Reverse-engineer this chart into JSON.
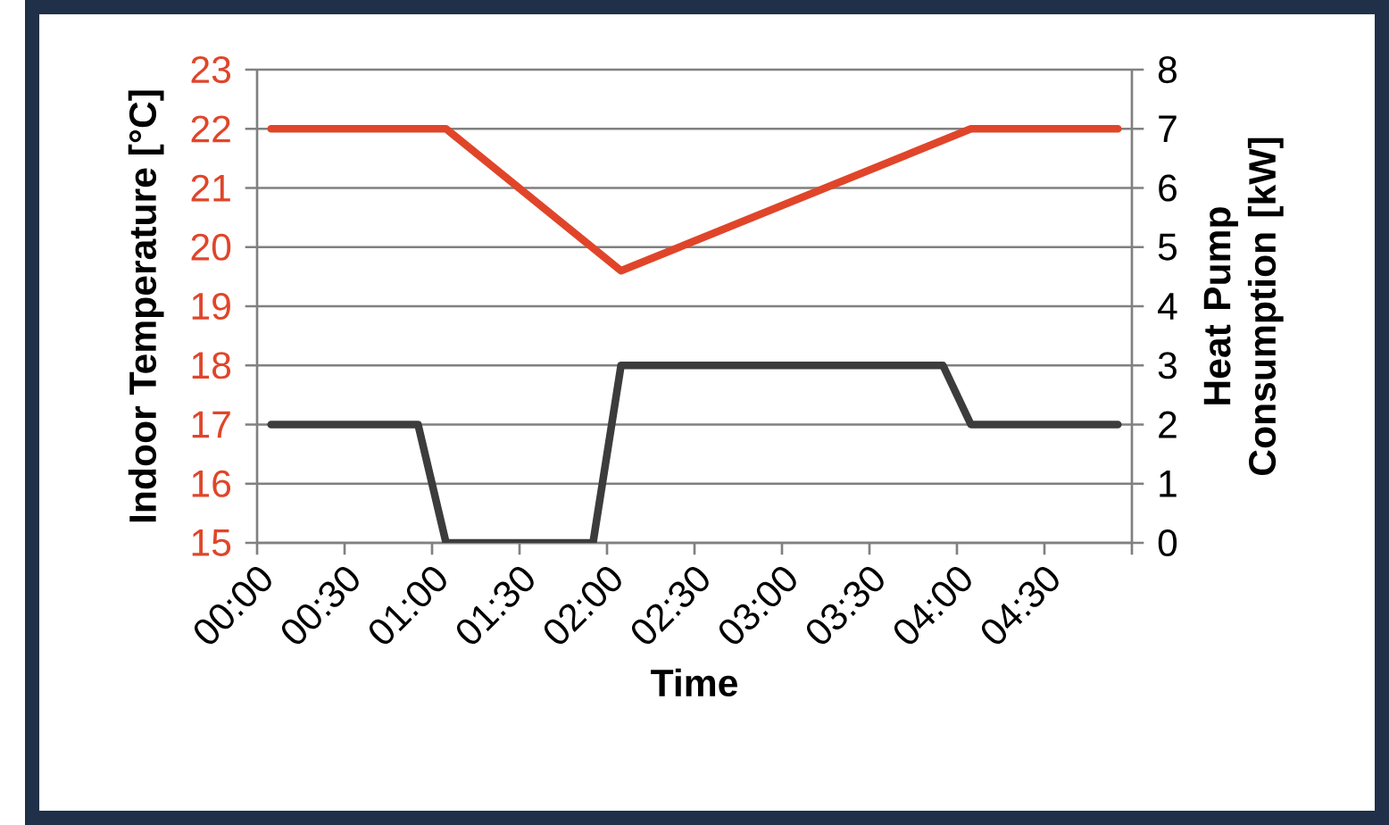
{
  "chart_data": {
    "type": "line",
    "xlabel": "Time",
    "ylabel": "Indoor Temperature [°C]",
    "y2label": "Heat Pump Consumption [kW]",
    "series": [
      {
        "color": "#e0452a",
        "x": [
          0.08,
          1.08,
          2.08,
          4.08,
          4.92
        ],
        "values": [
          22,
          22,
          19.6,
          22,
          22
        ]
      },
      {
        "color": "#3c3c3c",
        "axis": "y2",
        "x": [
          0.08,
          0.92,
          1.08,
          1.92,
          2.08,
          3.92,
          4.08,
          4.92
        ],
        "values": [
          2,
          2,
          0,
          0,
          3,
          3,
          2,
          2
        ]
      }
    ],
    "xlim": [
      0,
      5
    ],
    "xticks": [
      {
        "value": 0,
        "label": "00:00"
      },
      {
        "value": 0.5,
        "label": "00:30"
      },
      {
        "value": 1,
        "label": "01:00"
      },
      {
        "value": 1.5,
        "label": "01:30"
      },
      {
        "value": 2,
        "label": "02:00"
      },
      {
        "value": 2.5,
        "label": "02:30"
      },
      {
        "value": 3,
        "label": "03:00"
      },
      {
        "value": 3.5,
        "label": "03:30"
      },
      {
        "value": 4,
        "label": "04:00"
      },
      {
        "value": 4.5,
        "label": "04:30"
      },
      {
        "value": 5,
        "label": null
      }
    ],
    "ylim": [
      15,
      23
    ],
    "yticks": [
      15,
      16,
      17,
      18,
      19,
      20,
      21,
      22,
      23
    ],
    "y2lim": [
      0,
      8
    ],
    "y2ticks": [
      0,
      1,
      2,
      3,
      4,
      5,
      6,
      7,
      8
    ],
    "grid": "y",
    "marker": "none",
    "line_style": "solid"
  }
}
